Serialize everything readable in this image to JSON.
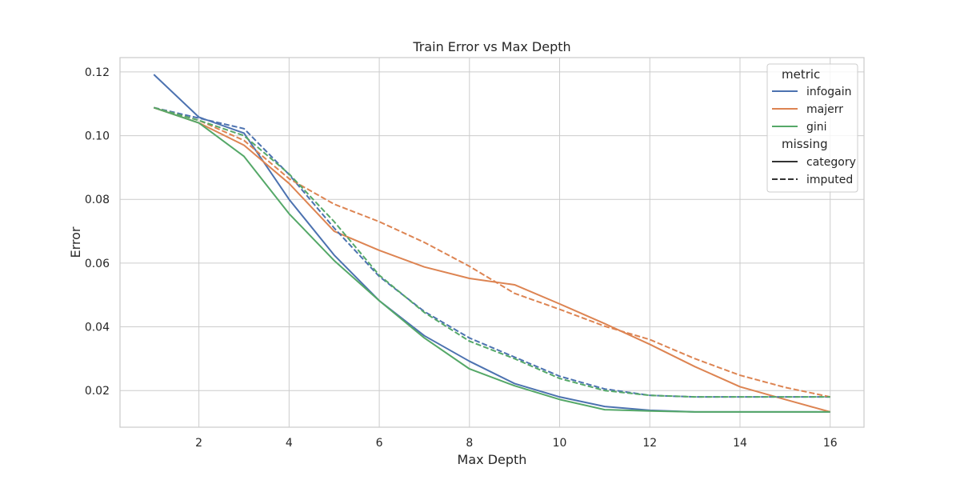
{
  "chart_data": {
    "type": "line",
    "title": "Train Error vs Max Depth",
    "xlabel": "Max Depth",
    "ylabel": "Error",
    "xlim": [
      0.25,
      16.75
    ],
    "ylim": [
      0.0085,
      0.1245
    ],
    "xticks": [
      2,
      4,
      6,
      8,
      10,
      12,
      14,
      16
    ],
    "xtick_labels": [
      "2",
      "4",
      "6",
      "8",
      "10",
      "12",
      "14",
      "16"
    ],
    "yticks": [
      0.02,
      0.04,
      0.06,
      0.08,
      0.1,
      0.12
    ],
    "ytick_labels": [
      "0.02",
      "0.04",
      "0.06",
      "0.08",
      "0.10",
      "0.12"
    ],
    "grid": true,
    "legend_placement": "top-right",
    "x": [
      1,
      2,
      3,
      4,
      5,
      6,
      7,
      8,
      9,
      10,
      11,
      12,
      13,
      14,
      15,
      16
    ],
    "series": [
      {
        "metric": "infogain",
        "missing": "category",
        "color": "#4c72b0",
        "dash": "solid",
        "values": [
          0.1192,
          0.1058,
          0.1008,
          0.08,
          0.0625,
          0.0482,
          0.0372,
          0.0292,
          0.0222,
          0.018,
          0.015,
          0.0138,
          0.0133,
          0.0133,
          0.0133,
          0.0133
        ]
      },
      {
        "metric": "majerr",
        "missing": "category",
        "color": "#dd8452",
        "dash": "solid",
        "values": [
          0.1088,
          0.104,
          0.097,
          0.085,
          0.07,
          0.064,
          0.0588,
          0.0552,
          0.0532,
          0.0472,
          0.041,
          0.0345,
          0.0275,
          0.0212,
          0.0172,
          0.0133
        ]
      },
      {
        "metric": "gini",
        "missing": "category",
        "color": "#55a868",
        "dash": "solid",
        "values": [
          0.1088,
          0.104,
          0.0935,
          0.0755,
          0.0608,
          0.0482,
          0.0365,
          0.0268,
          0.0215,
          0.0172,
          0.014,
          0.0136,
          0.0133,
          0.0133,
          0.0133,
          0.0133
        ]
      },
      {
        "metric": "infogain",
        "missing": "imputed",
        "color": "#4c72b0",
        "dash": "dashed",
        "values": [
          0.1088,
          0.1055,
          0.1022,
          0.0878,
          0.071,
          0.0558,
          0.0448,
          0.0365,
          0.0305,
          0.0245,
          0.0205,
          0.0185,
          0.018,
          0.018,
          0.018,
          0.018
        ]
      },
      {
        "metric": "majerr",
        "missing": "imputed",
        "color": "#dd8452",
        "dash": "dashed",
        "values": [
          0.1088,
          0.1048,
          0.0985,
          0.0865,
          0.0785,
          0.073,
          0.0665,
          0.059,
          0.0505,
          0.0455,
          0.0402,
          0.036,
          0.03,
          0.0248,
          0.021,
          0.018
        ]
      },
      {
        "metric": "gini",
        "missing": "imputed",
        "color": "#55a868",
        "dash": "dashed",
        "values": [
          0.1088,
          0.1048,
          0.1,
          0.088,
          0.073,
          0.0562,
          0.0445,
          0.0355,
          0.03,
          0.0238,
          0.02,
          0.0185,
          0.018,
          0.018,
          0.018,
          0.018
        ]
      }
    ],
    "legend": {
      "hue_title": "metric",
      "hue_entries": [
        {
          "label": "infogain",
          "color": "#4c72b0"
        },
        {
          "label": "majerr",
          "color": "#dd8452"
        },
        {
          "label": "gini",
          "color": "#55a868"
        }
      ],
      "style_title": "missing",
      "style_entries": [
        {
          "label": "category",
          "dash": "solid"
        },
        {
          "label": "imputed",
          "dash": "dashed"
        }
      ]
    }
  }
}
